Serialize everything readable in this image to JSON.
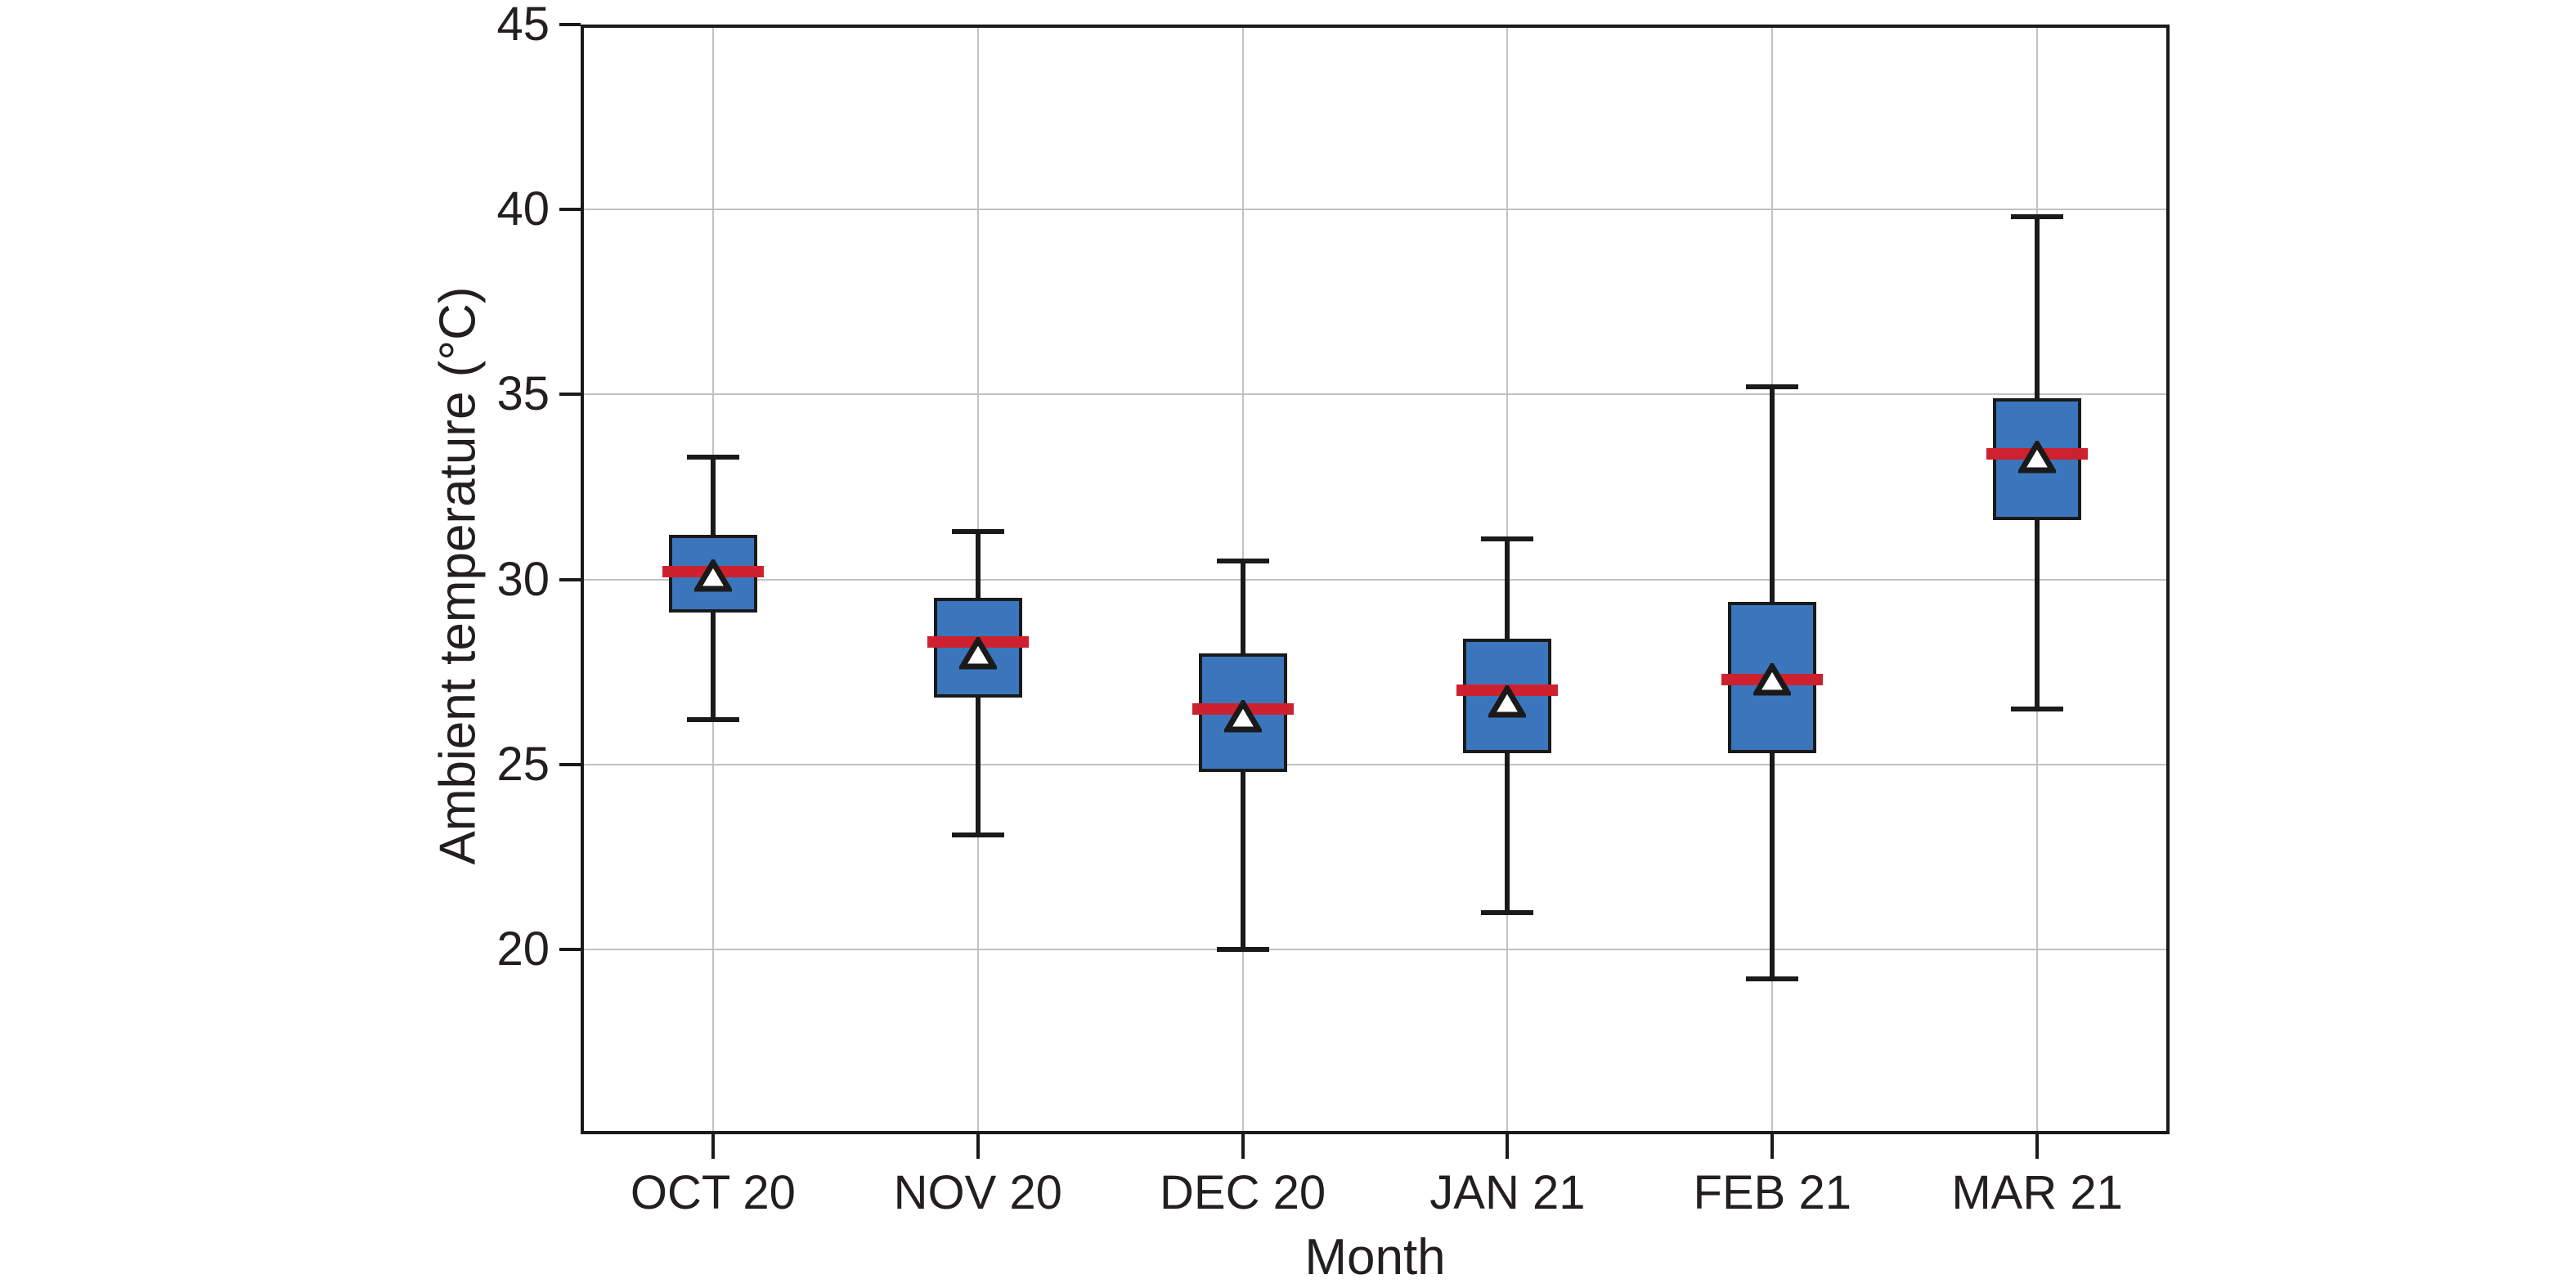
{
  "chart_data": {
    "type": "box",
    "title": "",
    "xlabel": "Month",
    "ylabel": "Ambient temperature (°C)",
    "categories": [
      "OCT 20",
      "NOV 20",
      "DEC 20",
      "JAN 21",
      "FEB 21",
      "MAR 21"
    ],
    "ylim": [
      15,
      45
    ],
    "yticks": [
      20,
      25,
      30,
      35,
      40,
      45
    ],
    "grid": true,
    "legend": null,
    "series": [
      {
        "name": "OCT 20",
        "whisker_low": 26.2,
        "q1": 29.1,
        "median": 30.2,
        "q3": 31.2,
        "whisker_high": 33.3,
        "mean": 30.1
      },
      {
        "name": "NOV 20",
        "whisker_low": 23.1,
        "q1": 26.8,
        "median": 28.3,
        "q3": 29.5,
        "whisker_high": 31.3,
        "mean": 28.0
      },
      {
        "name": "DEC 20",
        "whisker_low": 20.0,
        "q1": 24.8,
        "median": 26.5,
        "q3": 28.0,
        "whisker_high": 30.5,
        "mean": 26.3
      },
      {
        "name": "JAN 21",
        "whisker_low": 21.0,
        "q1": 25.3,
        "median": 27.0,
        "q3": 28.4,
        "whisker_high": 31.1,
        "mean": 26.7
      },
      {
        "name": "FEB 21",
        "whisker_low": 19.2,
        "q1": 25.3,
        "median": 27.3,
        "q3": 29.4,
        "whisker_high": 35.2,
        "mean": 27.3
      },
      {
        "name": "MAR 21",
        "whisker_low": 26.5,
        "q1": 31.6,
        "median": 33.4,
        "q3": 34.9,
        "whisker_high": 39.8,
        "mean": 33.3
      }
    ],
    "markers": {
      "median_marker": "red horizontal band",
      "mean_marker": "white upward triangle with black edge"
    },
    "colors": {
      "box_fill": "#3b76bc",
      "box_edge": "#1a1a1a",
      "whisker": "#1a1a1a",
      "median": "#ce2130",
      "mean_fill": "#ffffff",
      "mean_edge": "#1a1a1a",
      "gridline": "#c2c2c2",
      "text": "#231f20",
      "background": "#ffffff"
    }
  }
}
